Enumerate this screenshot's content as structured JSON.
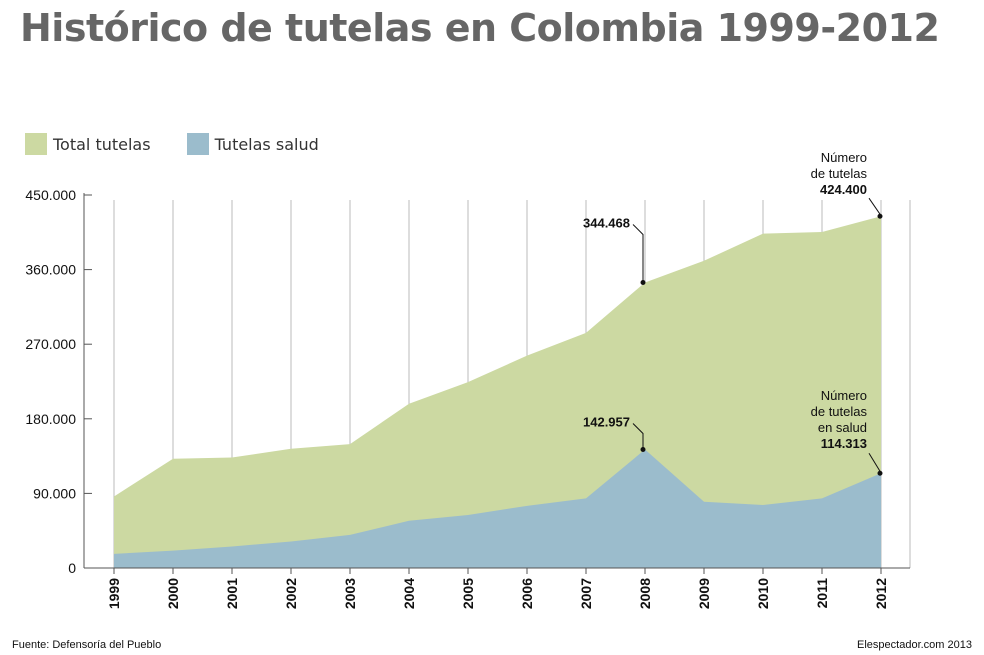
{
  "title": "Histórico de tutelas en Colombia 1999-2012",
  "source": "Fuente: Defensoría del Pueblo",
  "credit": "Elespectador.com 2013",
  "colors": {
    "total": "#ccd9a2",
    "salud": "#9bbccc",
    "grid": "#bbbbbb",
    "axis": "#555555"
  },
  "chart_data": {
    "type": "area",
    "x": [
      "1999",
      "2000",
      "2001",
      "2002",
      "2003",
      "2004",
      "2005",
      "2006",
      "2007",
      "2008",
      "2009",
      "2010",
      "2011",
      "2012"
    ],
    "ylim": [
      0,
      450000
    ],
    "yticks": [
      0,
      90000,
      180000,
      270000,
      360000,
      450000
    ],
    "ytick_labels": [
      "0",
      "90.000",
      "180.000",
      "270.000",
      "360.000",
      "450.000"
    ],
    "grid": "vertical",
    "legend_position": "top-left",
    "series": [
      {
        "name": "Total tutelas",
        "color": "#ccd9a2",
        "values": [
          86313,
          131764,
          133272,
          143887,
          149439,
          198125,
          224270,
          256166,
          283637,
          344468,
          370640,
          403380,
          405359,
          424400
        ]
      },
      {
        "name": "Tutelas salud",
        "color": "#9bbccc",
        "values": [
          17000,
          21000,
          26000,
          32000,
          40000,
          57000,
          64000,
          75000,
          84000,
          142957,
          80000,
          76000,
          84000,
          114313
        ]
      }
    ],
    "annotations": [
      {
        "text": "344.468",
        "x": "2008",
        "series": 0
      },
      {
        "text": "142.957",
        "x": "2008",
        "series": 1
      },
      {
        "lines": [
          "Número",
          "de tutelas"
        ],
        "value": "424.400",
        "x": "2012",
        "series": 0
      },
      {
        "lines": [
          "Número",
          "de tutelas",
          "en salud"
        ],
        "value": "114.313",
        "x": "2012",
        "series": 1
      }
    ]
  }
}
